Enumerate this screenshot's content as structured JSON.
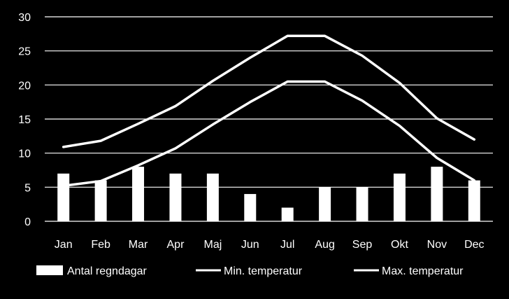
{
  "chart_data": {
    "type": "bar",
    "categories": [
      "Jan",
      "Feb",
      "Mar",
      "Apr",
      "Maj",
      "Jun",
      "Jul",
      "Aug",
      "Sep",
      "Okt",
      "Nov",
      "Dec"
    ],
    "series": [
      {
        "name": "Antal regndagar",
        "type": "bar",
        "values": [
          7,
          6,
          8,
          7,
          7,
          4,
          2,
          5,
          5,
          7,
          8,
          6
        ]
      },
      {
        "name": "Min. temperatur",
        "type": "line",
        "values": [
          5.2,
          5.9,
          8.2,
          10.7,
          14.2,
          17.5,
          20.5,
          20.5,
          17.7,
          14.0,
          9.3,
          6.0
        ]
      },
      {
        "name": "Max. temperatur",
        "type": "line",
        "values": [
          10.9,
          11.8,
          14.3,
          16.9,
          20.6,
          24.0,
          27.2,
          27.2,
          24.3,
          20.3,
          15.1,
          12.0
        ]
      }
    ],
    "yticks": [
      "0",
      "5",
      "10",
      "15",
      "20",
      "25",
      "30"
    ],
    "ylim": [
      0,
      30
    ],
    "grid": true,
    "legend": "bottom",
    "colors": {
      "background": "#000000",
      "foreground": "#ffffff"
    }
  }
}
